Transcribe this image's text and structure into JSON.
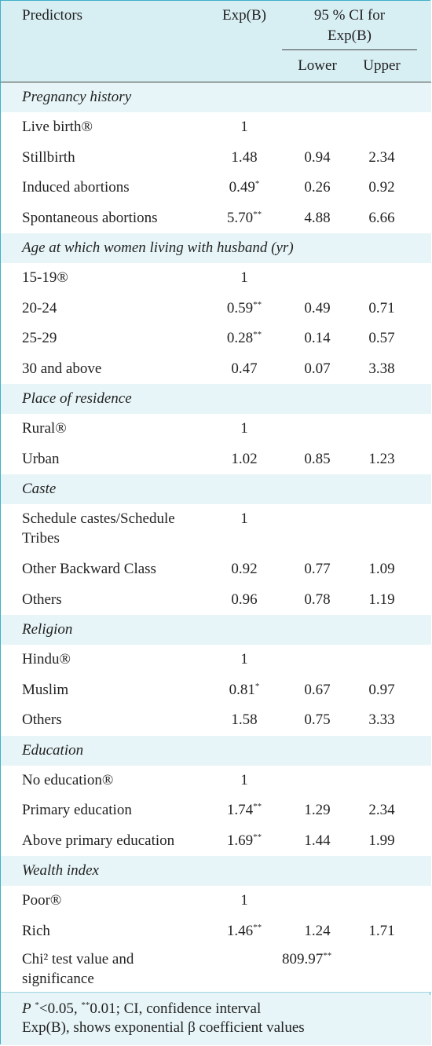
{
  "header": {
    "predictors": "Predictors",
    "exp_b": "Exp(B)",
    "ci_line1": "95 % CI for",
    "ci_line2": "Exp(B)",
    "lower": "Lower",
    "upper": "Upper"
  },
  "sections": [
    {
      "title": "Pregnancy history",
      "rows": [
        {
          "label": "Live birth®",
          "exp": "1",
          "sig": "",
          "lower": "",
          "upper": ""
        },
        {
          "label": "Stillbirth",
          "exp": "1.48",
          "sig": "",
          "lower": "0.94",
          "upper": "2.34"
        },
        {
          "label": "Induced abortions",
          "exp": "0.49",
          "sig": "*",
          "lower": "0.26",
          "upper": "0.92"
        },
        {
          "label": "Spontaneous abortions",
          "exp": "5.70",
          "sig": "**",
          "lower": "4.88",
          "upper": "6.66"
        }
      ]
    },
    {
      "title": "Age at which women living with husband (yr)",
      "rows": [
        {
          "label": "15-19®",
          "exp": "1",
          "sig": "",
          "lower": "",
          "upper": ""
        },
        {
          "label": "20-24",
          "exp": "0.59",
          "sig": "**",
          "lower": "0.49",
          "upper": "0.71"
        },
        {
          "label": "25-29",
          "exp": "0.28",
          "sig": "**",
          "lower": "0.14",
          "upper": "0.57"
        },
        {
          "label": "30 and above",
          "exp": "0.47",
          "sig": "",
          "lower": "0.07",
          "upper": "3.38"
        }
      ]
    },
    {
      "title": "Place of residence",
      "rows": [
        {
          "label": "Rural®",
          "exp": "1",
          "sig": "",
          "lower": "",
          "upper": ""
        },
        {
          "label": "Urban",
          "exp": "1.02",
          "sig": "",
          "lower": "0.85",
          "upper": "1.23"
        }
      ]
    },
    {
      "title": "Caste",
      "rows": [
        {
          "label": "Schedule   castes/Schedule",
          "label2": "Tribes",
          "exp": "1",
          "sig": "",
          "lower": "",
          "upper": ""
        },
        {
          "label": "Other Backward Class",
          "exp": "0.92",
          "sig": "",
          "lower": "0.77",
          "upper": "1.09"
        },
        {
          "label": "Others",
          "exp": "0.96",
          "sig": "",
          "lower": "0.78",
          "upper": "1.19"
        }
      ]
    },
    {
      "title": "Religion",
      "rows": [
        {
          "label": "Hindu®",
          "exp": "1",
          "sig": "",
          "lower": "",
          "upper": ""
        },
        {
          "label": "Muslim",
          "exp": "0.81",
          "sig": "*",
          "lower": "0.67",
          "upper": "0.97"
        },
        {
          "label": "Others",
          "exp": "1.58",
          "sig": "",
          "lower": "0.75",
          "upper": "3.33"
        }
      ]
    },
    {
      "title": "Education",
      "rows": [
        {
          "label": "No education®",
          "exp": "1",
          "sig": "",
          "lower": "",
          "upper": ""
        },
        {
          "label": "Primary education",
          "exp": "1.74",
          "sig": "**",
          "lower": "1.29",
          "upper": "2.34"
        },
        {
          "label": "Above primary education",
          "exp": "1.69",
          "sig": "**",
          "lower": "1.44",
          "upper": "1.99"
        }
      ]
    },
    {
      "title": "Wealth index",
      "rows": [
        {
          "label": "Poor®",
          "exp": "1",
          "sig": "",
          "lower": "",
          "upper": ""
        },
        {
          "label": "Rich",
          "exp": "1.46",
          "sig": "**",
          "lower": "1.24",
          "upper": "1.71"
        }
      ]
    }
  ],
  "chi": {
    "label1": "Chi² test value and",
    "label2": "significance",
    "value": "809.97",
    "sig": "**"
  },
  "footnote": {
    "line1_p": "P",
    "line1_rest": "<0.05,",
    "line1_rest2": "0.01; CI, confidence interval",
    "sig1": "*",
    "sig2": "**",
    "line2": "Exp(B), shows exponential β coefficient values"
  }
}
